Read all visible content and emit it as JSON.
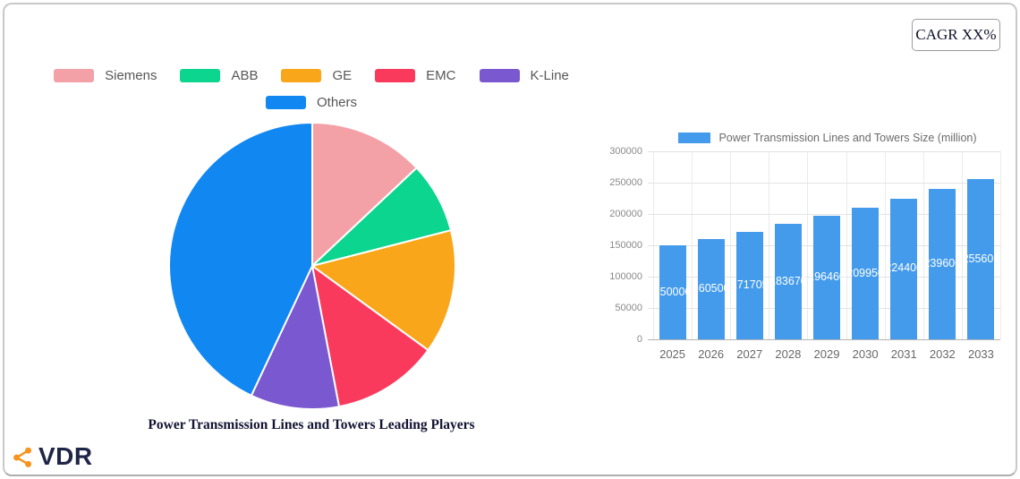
{
  "cagr_label": "CAGR XX%",
  "logo": {
    "text": "VDR",
    "icon": "share-icon",
    "icon_color": "#F7941E",
    "text_color": "#1F2547"
  },
  "chart_data": [
    {
      "type": "pie",
      "title": "Power Transmission Lines and Towers Leading Players",
      "labels": [
        "Siemens",
        "ABB",
        "GE",
        "EMC",
        "K-Line",
        "Others"
      ],
      "values": [
        13,
        8,
        14,
        12,
        10,
        43
      ],
      "unit": "percent",
      "colors": [
        "#F4A0A7",
        "#0BD58E",
        "#F9A61B",
        "#F93A5D",
        "#7A58CF",
        "#1187F2"
      ],
      "legend_position": "top",
      "legend_rows": [
        [
          "Siemens",
          "ABB",
          "GE",
          "EMC",
          "K-Line"
        ],
        [
          "Others"
        ]
      ],
      "start_angle_deg": 0,
      "direction": "clockwise"
    },
    {
      "type": "bar",
      "legend": "Power Transmission Lines and Towers Size (million)",
      "categories": [
        "2025",
        "2026",
        "2027",
        "2028",
        "2029",
        "2030",
        "2031",
        "2032",
        "2033"
      ],
      "values": [
        150000,
        160500,
        171705,
        183670,
        196460,
        209950,
        224400,
        239600,
        255600
      ],
      "bar_color": "#449BEB",
      "ylim": [
        0,
        300000
      ],
      "yticks": [
        0,
        50000,
        100000,
        150000,
        200000,
        250000,
        300000
      ],
      "grid": true,
      "value_labels": "inside-white"
    }
  ]
}
